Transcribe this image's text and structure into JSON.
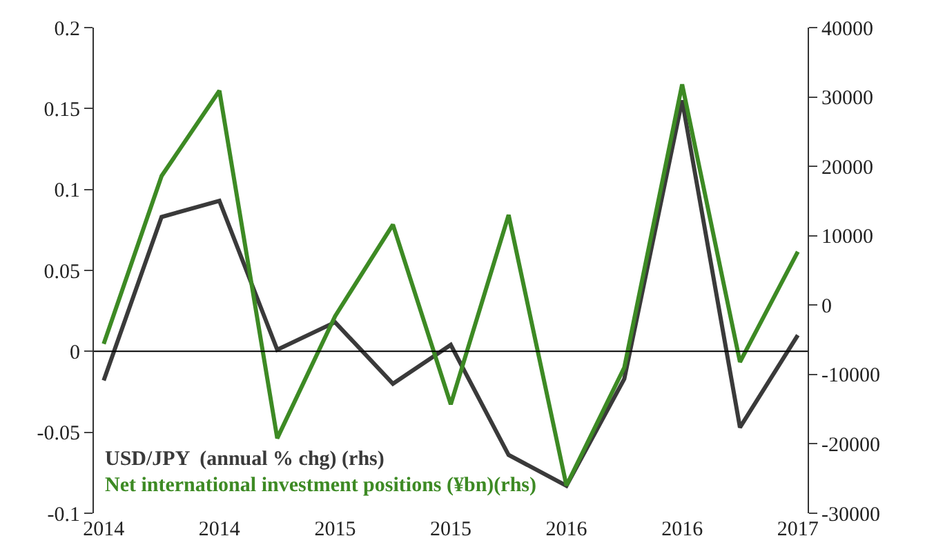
{
  "chart_data": {
    "type": "line",
    "categories": [
      "2014",
      null,
      "2014",
      null,
      "2015",
      null,
      "2015",
      null,
      "2016",
      null,
      "2016",
      null,
      "2017"
    ],
    "series": [
      {
        "name": "USD/JPY  (annual % chg) (rhs)",
        "color": "#3a3a3a",
        "values": [
          -0.018,
          0.083,
          0.093,
          0.001,
          0.018,
          -0.02,
          0.004,
          -0.064,
          -0.083,
          -0.017,
          0.155,
          -0.047,
          0.01
        ]
      },
      {
        "name": "Net international investment positions (¥bn)(rhs)",
        "color": "#3d8a24",
        "axis": "y2",
        "values": [
          -5600,
          18600,
          30900,
          -19200,
          -1600,
          11600,
          -14300,
          13000,
          -26000,
          -9000,
          31800,
          -8200,
          7700
        ]
      }
    ],
    "ylim": [
      -0.1,
      0.2
    ],
    "yticks": [
      -0.1,
      -0.05,
      0,
      0.05,
      0.1,
      0.15,
      0.2
    ],
    "y2lim": [
      -30000,
      40000
    ],
    "y2ticks": [
      -30000,
      -20000,
      -10000,
      0,
      10000,
      20000,
      30000,
      40000
    ],
    "ref_lines": [
      {
        "axis": "y",
        "value": 0,
        "color": "#000000"
      }
    ],
    "marker": "none",
    "line_style": "solid"
  }
}
